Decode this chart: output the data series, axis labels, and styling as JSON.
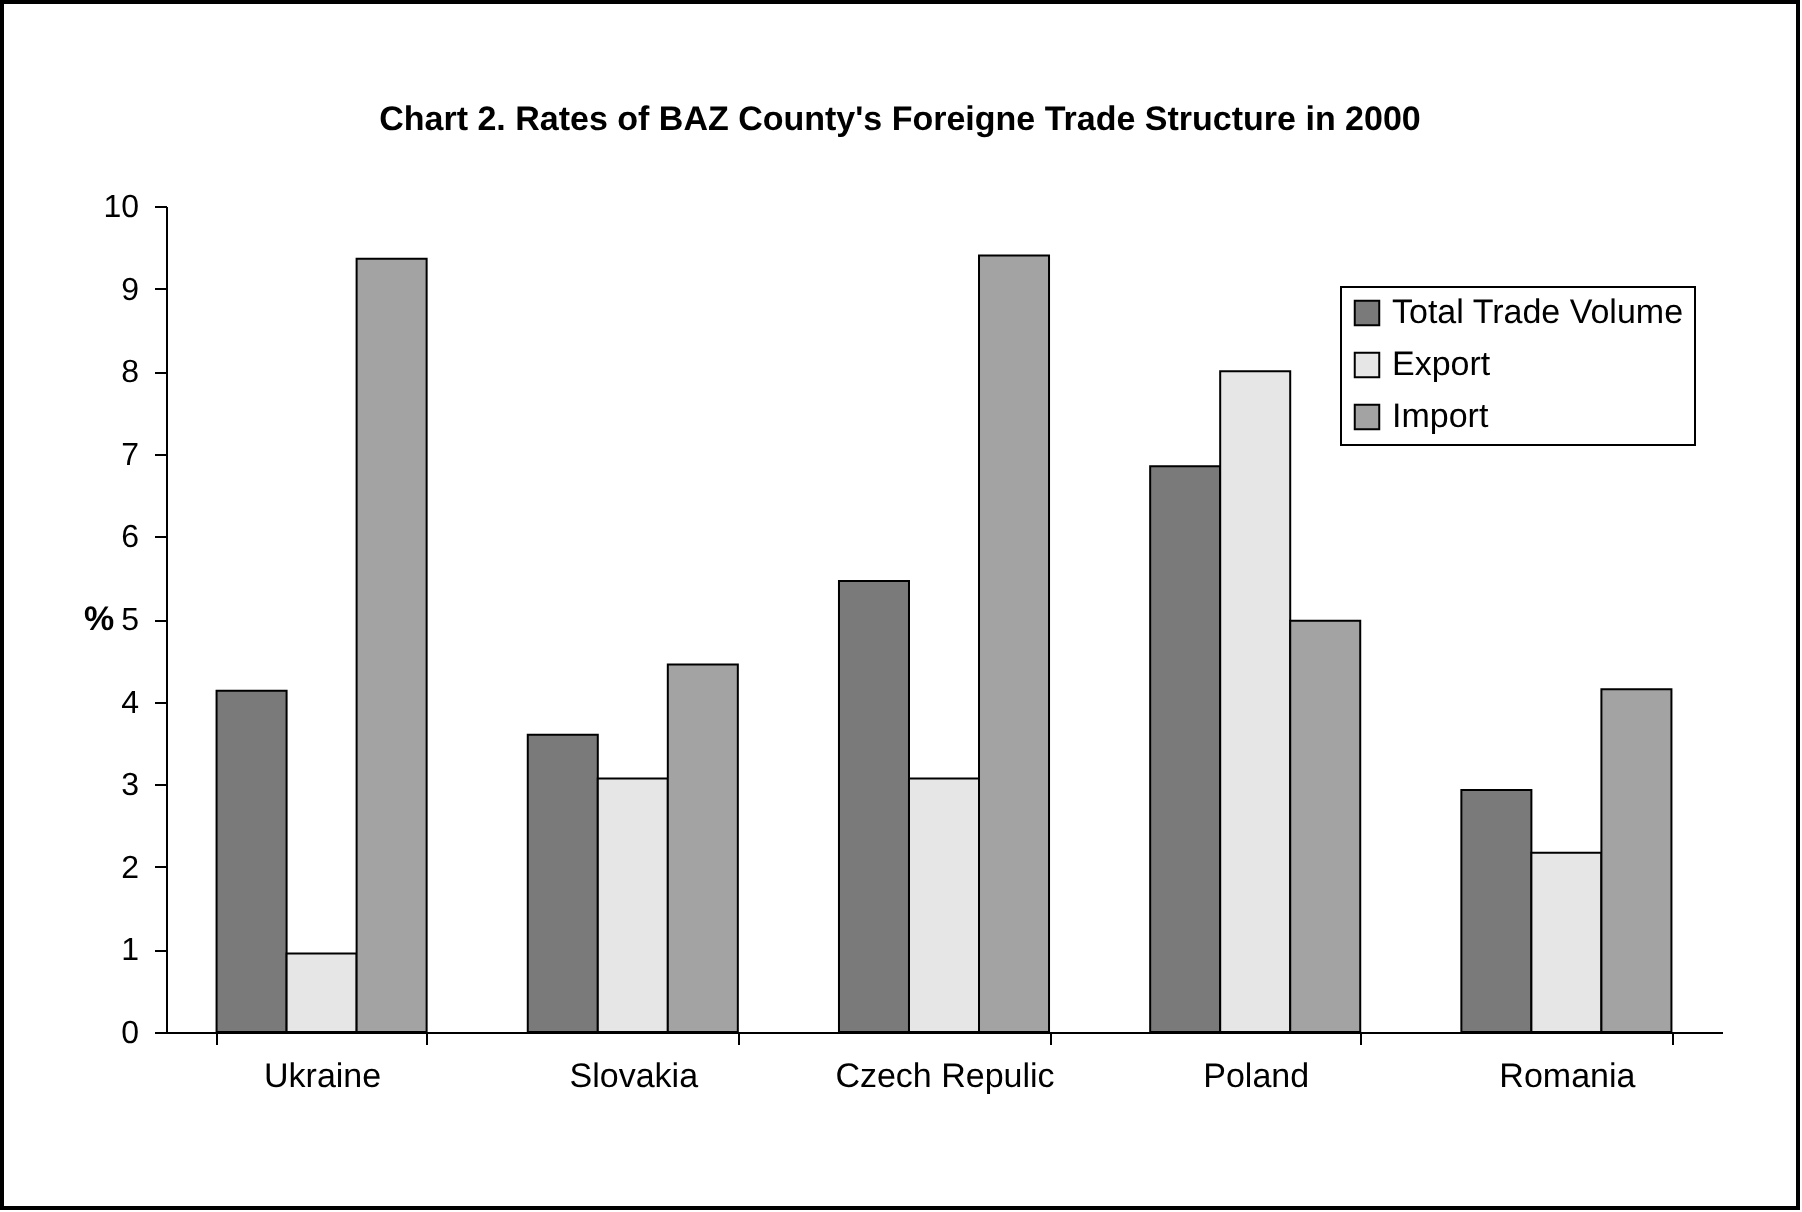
{
  "chart_data": {
    "type": "bar",
    "title": "Chart 2. Rates of BAZ County's Foreigne Trade Structure in 2000",
    "ylabel": "%",
    "categories": [
      "Ukraine",
      "Slovakia",
      "Czech Repulic",
      "Poland",
      "Romania"
    ],
    "series": [
      {
        "name": "Total Trade Volume",
        "color": "#7a7a7a",
        "values": [
          4.13,
          3.6,
          5.46,
          6.85,
          2.93
        ]
      },
      {
        "name": "Export",
        "color": "#e6e6e6",
        "values": [
          0.95,
          3.07,
          3.07,
          8.0,
          2.17
        ]
      },
      {
        "name": "Import",
        "color": "#a3a3a3",
        "values": [
          9.36,
          4.45,
          9.4,
          4.98,
          4.15
        ]
      }
    ],
    "ylim": [
      0,
      10
    ],
    "yticks": [
      0,
      1,
      2,
      3,
      4,
      5,
      6,
      7,
      8,
      9,
      10
    ],
    "grid": false,
    "legend": "top right"
  }
}
